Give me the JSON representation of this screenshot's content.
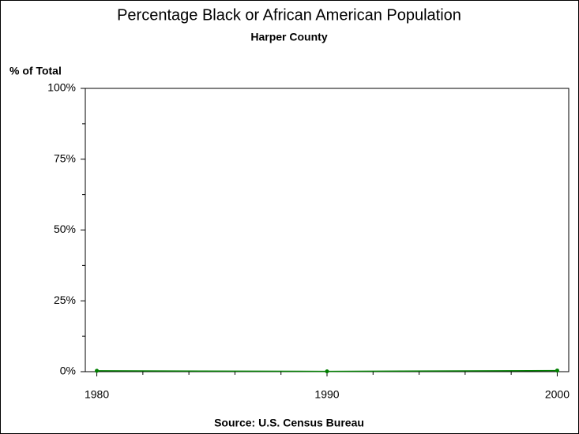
{
  "chart_data": {
    "type": "line",
    "title": "Percentage Black or African American Population",
    "subtitle": "Harper County",
    "y_label": "% of Total",
    "source": "Source: U.S. Census Bureau",
    "x": [
      1980,
      1990,
      2000
    ],
    "series": [
      {
        "name": "Harper County",
        "color": "#008000",
        "values": [
          0.3,
          0.1,
          0.4
        ]
      }
    ],
    "xlim": [
      1979.5,
      2000.5
    ],
    "xticks": [
      1980,
      1990,
      2000
    ],
    "xminorticks": [
      1982,
      1984,
      1986,
      1988,
      1992,
      1994,
      1996,
      1998
    ],
    "ylim": [
      0,
      100
    ],
    "yticks": [
      {
        "value": 0,
        "label": "0%"
      },
      {
        "value": 25,
        "label": "25%"
      },
      {
        "value": 50,
        "label": "50%"
      },
      {
        "value": 75,
        "label": "75%"
      },
      {
        "value": 100,
        "label": "100%"
      }
    ],
    "yminorticks": [
      12.5,
      37.5,
      62.5,
      87.5
    ]
  }
}
